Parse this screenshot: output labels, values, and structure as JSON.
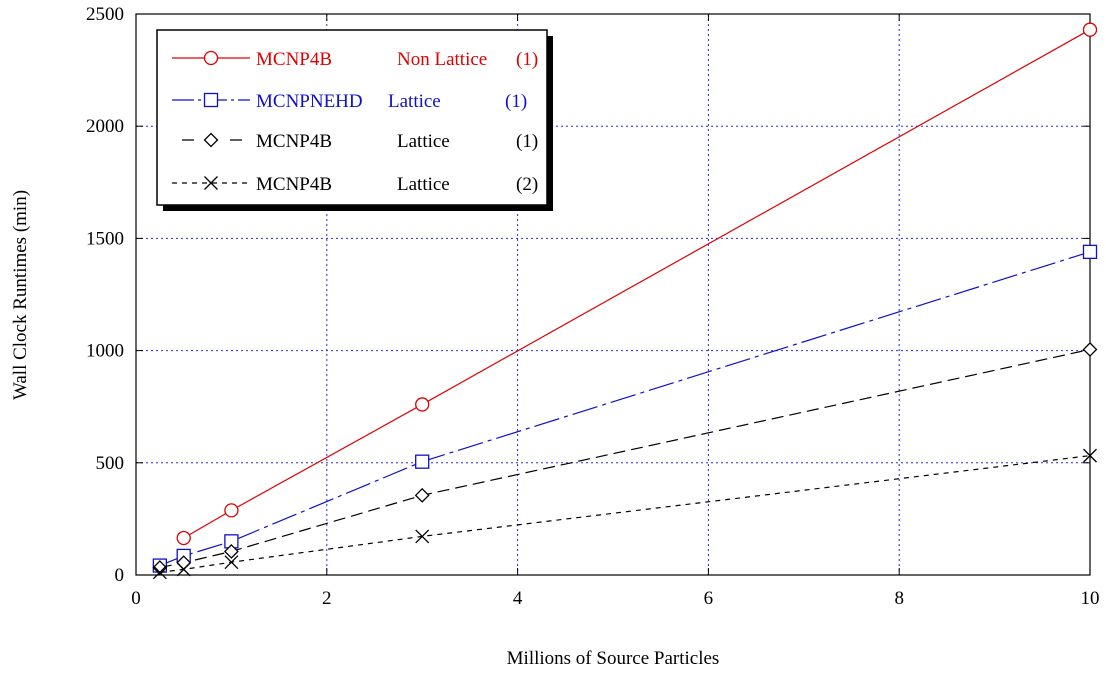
{
  "chart_data": {
    "type": "line",
    "xlabel": "Millions of Source Particles",
    "ylabel": "Wall Clock Runtimes (min)",
    "xlim": [
      0,
      10
    ],
    "ylim": [
      0,
      2500
    ],
    "xticks": [
      0,
      2,
      4,
      6,
      8,
      10
    ],
    "yticks": [
      0,
      500,
      1000,
      1500,
      2000,
      2500
    ],
    "grid": true,
    "legend_position": "top-left",
    "series": [
      {
        "legend": [
          "MCNP4B",
          "Non Lattice",
          "(1)"
        ],
        "color": "#e00000",
        "marker": "circle",
        "line_style": "solid",
        "x": [
          0.5,
          1,
          3,
          10
        ],
        "y": [
          165,
          288,
          760,
          2430
        ]
      },
      {
        "legend": [
          "MCNPNEHD",
          "Lattice",
          "(1)"
        ],
        "color": "#1010cc",
        "marker": "square",
        "line_style": "dash-dot",
        "x": [
          0.25,
          0.5,
          1,
          3,
          10
        ],
        "y": [
          42,
          85,
          150,
          505,
          1440
        ]
      },
      {
        "legend": [
          "MCNP4B",
          "Lattice",
          "(1)"
        ],
        "color": "#000000",
        "marker": "diamond",
        "line_style": "dashed",
        "x": [
          0.25,
          0.5,
          1,
          3,
          10
        ],
        "y": [
          33,
          55,
          105,
          355,
          1005
        ]
      },
      {
        "legend": [
          "MCNP4B",
          "Lattice",
          "(2)"
        ],
        "color": "#000000",
        "marker": "x",
        "line_style": "dotted",
        "x": [
          0.25,
          0.5,
          1,
          3,
          10
        ],
        "y": [
          12,
          25,
          57,
          172,
          532
        ]
      }
    ]
  }
}
